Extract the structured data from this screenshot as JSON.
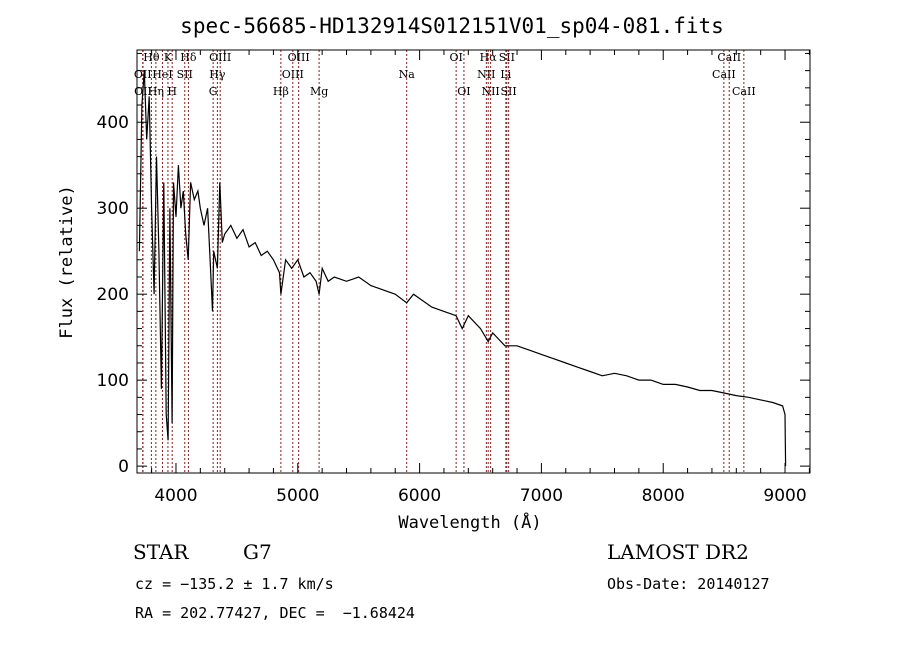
{
  "chart_data": {
    "type": "line",
    "title": "spec-56685-HD132914S012151V01_sp04-081.fits",
    "xlabel": "Wavelength (Å)",
    "ylabel": "Flux (relative)",
    "xlim": [
      3680,
      9205
    ],
    "ylim": [
      -8,
      484
    ],
    "xticks": [
      4000,
      5000,
      6000,
      7000,
      8000,
      9000
    ],
    "yticks": [
      0,
      100,
      200,
      300,
      400
    ],
    "grid": false,
    "series": [
      {
        "name": "spectrum",
        "x": [
          3700,
          3720,
          3740,
          3760,
          3780,
          3800,
          3820,
          3840,
          3860,
          3880,
          3900,
          3920,
          3935,
          3950,
          3968,
          3980,
          4000,
          4020,
          4040,
          4060,
          4080,
          4100,
          4120,
          4150,
          4180,
          4200,
          4230,
          4260,
          4280,
          4300,
          4310,
          4340,
          4360,
          4380,
          4400,
          4450,
          4500,
          4550,
          4600,
          4650,
          4700,
          4750,
          4800,
          4850,
          4861,
          4900,
          4950,
          5000,
          5050,
          5100,
          5150,
          5175,
          5200,
          5250,
          5300,
          5400,
          5500,
          5600,
          5700,
          5800,
          5894,
          5950,
          6000,
          6100,
          6200,
          6300,
          6350,
          6400,
          6500,
          6563,
          6600,
          6700,
          6800,
          6900,
          7000,
          7100,
          7200,
          7300,
          7400,
          7500,
          7600,
          7700,
          7800,
          7900,
          8000,
          8100,
          8200,
          8300,
          8400,
          8500,
          8600,
          8700,
          8800,
          8900,
          8980,
          9000,
          9005
        ],
        "y": [
          250,
          420,
          460,
          380,
          430,
          300,
          200,
          360,
          250,
          90,
          330,
          60,
          30,
          300,
          50,
          330,
          290,
          350,
          300,
          320,
          270,
          240,
          330,
          310,
          320,
          300,
          280,
          300,
          240,
          180,
          250,
          230,
          330,
          260,
          270,
          280,
          265,
          275,
          255,
          260,
          245,
          250,
          240,
          225,
          200,
          240,
          230,
          240,
          220,
          225,
          215,
          200,
          230,
          215,
          220,
          215,
          220,
          210,
          205,
          200,
          190,
          200,
          195,
          185,
          180,
          175,
          160,
          175,
          160,
          145,
          155,
          140,
          140,
          135,
          130,
          125,
          120,
          115,
          110,
          105,
          108,
          105,
          100,
          100,
          95,
          95,
          92,
          88,
          88,
          85,
          82,
          80,
          77,
          74,
          70,
          60,
          0
        ]
      }
    ],
    "line_markers": [
      {
        "label": "Hθ",
        "wavelength": 3798,
        "row": 1
      },
      {
        "label": "K",
        "wavelength": 3934,
        "row": 1
      },
      {
        "label": "Hδ",
        "wavelength": 4102,
        "row": 1
      },
      {
        "label": "OIII",
        "wavelength": 4363,
        "row": 1
      },
      {
        "label": "OIII",
        "wavelength": 5007,
        "row": 1
      },
      {
        "label": "OI",
        "wavelength": 6300,
        "row": 1
      },
      {
        "label": "Hα",
        "wavelength": 6563,
        "row": 1
      },
      {
        "label": "SII",
        "wavelength": 6716,
        "row": 1
      },
      {
        "label": "CaII",
        "wavelength": 8542,
        "row": 1
      },
      {
        "label": "OII",
        "wavelength": 3727,
        "row": 2
      },
      {
        "label": "HeI",
        "wavelength": 3889,
        "row": 2
      },
      {
        "label": "SII",
        "wavelength": 4072,
        "row": 2
      },
      {
        "label": "Hγ",
        "wavelength": 4340,
        "row": 2
      },
      {
        "label": "OIII",
        "wavelength": 4959,
        "row": 2
      },
      {
        "label": "Na",
        "wavelength": 5894,
        "row": 2
      },
      {
        "label": "NII",
        "wavelength": 6548,
        "row": 2
      },
      {
        "label": "Li",
        "wavelength": 6708,
        "row": 2
      },
      {
        "label": "CaII",
        "wavelength": 8498,
        "row": 2
      },
      {
        "label": "OII",
        "wavelength": 3729,
        "row": 3
      },
      {
        "label": "Hη",
        "wavelength": 3835,
        "row": 3
      },
      {
        "label": "H",
        "wavelength": 3969,
        "row": 3
      },
      {
        "label": "G",
        "wavelength": 4305,
        "row": 3
      },
      {
        "label": "Hβ",
        "wavelength": 4861,
        "row": 3
      },
      {
        "label": "Mg",
        "wavelength": 5175,
        "row": 3
      },
      {
        "label": "OI",
        "wavelength": 6364,
        "row": 3
      },
      {
        "label": "NII",
        "wavelength": 6583,
        "row": 3
      },
      {
        "label": "SII",
        "wavelength": 6731,
        "row": 3
      },
      {
        "label": "CaII",
        "wavelength": 8662,
        "row": 3
      }
    ],
    "marker_color": "#8b1a1a"
  },
  "info": {
    "object_type": "STAR",
    "subclass": "G7",
    "cz": "cz = −135.2 ± 1.7 km/s",
    "coords": "RA = 202.77427, DEC =  −1.68424",
    "survey": "LAMOST DR2",
    "obs_date": "Obs-Date: 20140127"
  }
}
